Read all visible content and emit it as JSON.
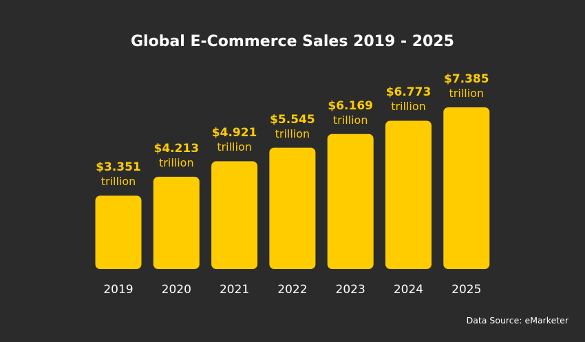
{
  "chart_data": {
    "type": "bar",
    "title": "Global E-Commerce Sales 2019 - 2025",
    "categories": [
      "2019",
      "2020",
      "2021",
      "2022",
      "2023",
      "2024",
      "2025"
    ],
    "values": [
      3.351,
      4.213,
      4.921,
      5.545,
      6.169,
      6.773,
      7.385
    ],
    "value_labels": [
      "$3.351",
      "$4.213",
      "$4.921",
      "$5.545",
      "$6.169",
      "$6.773",
      "$7.385"
    ],
    "unit_label": "trillion",
    "xlabel": "",
    "ylabel": "",
    "ylim": [
      0,
      7.385
    ],
    "grid": false,
    "legend": "none"
  },
  "source": "Data Source: eMarketer",
  "colors": {
    "background": "#2b2b2b",
    "bar": "#ffcc00",
    "value_text": "#ffcc00",
    "title_text": "#ffffff",
    "axis_text": "#ffffff"
  }
}
